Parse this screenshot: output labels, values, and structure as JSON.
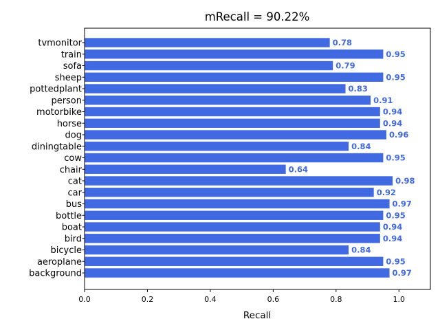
{
  "chart_data": {
    "type": "bar",
    "orientation": "horizontal",
    "title": "mRecall = 90.22%",
    "xlabel": "Recall",
    "ylabel": "",
    "xlim": [
      0,
      1.1
    ],
    "x_ticks": [
      0.0,
      0.2,
      0.4,
      0.6,
      0.8,
      1.0
    ],
    "x_tick_labels": [
      "0.0",
      "0.2",
      "0.4",
      "0.6",
      "0.8",
      "1.0"
    ],
    "bar_color": "#4169E1",
    "label_color": "#4169E1",
    "categories": [
      "background",
      "aeroplane",
      "bicycle",
      "bird",
      "boat",
      "bottle",
      "bus",
      "car",
      "cat",
      "chair",
      "cow",
      "diningtable",
      "dog",
      "horse",
      "motorbike",
      "person",
      "pottedplant",
      "sheep",
      "sofa",
      "train",
      "tvmonitor"
    ],
    "values": [
      0.97,
      0.95,
      0.84,
      0.94,
      0.94,
      0.95,
      0.97,
      0.92,
      0.98,
      0.64,
      0.95,
      0.84,
      0.96,
      0.94,
      0.94,
      0.91,
      0.83,
      0.95,
      0.79,
      0.95,
      0.78
    ],
    "value_labels": [
      "0.97",
      "0.95",
      "0.84",
      "0.94",
      "0.94",
      "0.95",
      "0.97",
      "0.92",
      "0.98",
      "0.64",
      "0.95",
      "0.84",
      "0.96",
      "0.94",
      "0.94",
      "0.91",
      "0.83",
      "0.95",
      "0.79",
      "0.95",
      "0.78"
    ],
    "grid": false,
    "legend": "none"
  }
}
